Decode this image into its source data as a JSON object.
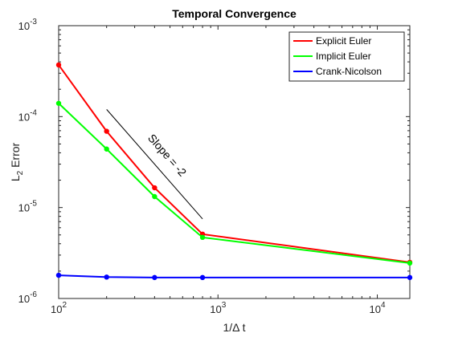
{
  "chart_data": {
    "type": "line",
    "title": "Temporal Convergence",
    "xlabel": "1/Δ t",
    "ylabel": "L2 Error",
    "ylabel_main": "L",
    "ylabel_sub": "2",
    "ylabel_rest": " Error",
    "x_scale": "log",
    "y_scale": "log",
    "xlim": [
      100,
      16000
    ],
    "ylim": [
      1e-06,
      0.001
    ],
    "x_ticks": [
      {
        "value": 100,
        "base": "10",
        "exp": "2"
      },
      {
        "value": 1000,
        "base": "10",
        "exp": "3"
      },
      {
        "value": 10000,
        "base": "10",
        "exp": "4"
      }
    ],
    "y_ticks": [
      {
        "value": 1e-06,
        "base": "10",
        "exp": "-6"
      },
      {
        "value": 1e-05,
        "base": "10",
        "exp": "-5"
      },
      {
        "value": 0.0001,
        "base": "10",
        "exp": "-4"
      },
      {
        "value": 0.001,
        "base": "10",
        "exp": "-3"
      }
    ],
    "grid": false,
    "legend_position": "top-right",
    "series": [
      {
        "name": "Explicit Euler",
        "color": "#ff0000",
        "x": [
          100,
          200,
          400,
          800,
          16000
        ],
        "y": [
          0.00037,
          6.9e-05,
          1.65e-05,
          5.1e-06,
          2.5e-06
        ]
      },
      {
        "name": "Implicit Euler",
        "color": "#00ff00",
        "x": [
          100,
          200,
          400,
          800,
          16000
        ],
        "y": [
          0.00014,
          4.4e-05,
          1.32e-05,
          4.7e-06,
          2.45e-06
        ]
      },
      {
        "name": "Crank-Nicolson",
        "color": "#0000ff",
        "x": [
          100,
          200,
          400,
          800,
          16000
        ],
        "y": [
          1.8e-06,
          1.72e-06,
          1.7e-06,
          1.7e-06,
          1.7e-06
        ]
      }
    ],
    "reference_line": {
      "label": "Slope = -2",
      "x": [
        200,
        800
      ],
      "y": [
        0.00012,
        7.5e-06
      ],
      "color": "#000000"
    }
  }
}
